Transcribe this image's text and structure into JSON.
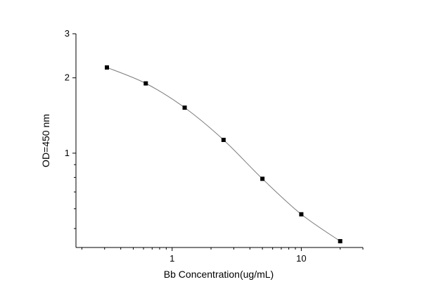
{
  "chart_data": {
    "type": "line",
    "x_scale": "log",
    "y_scale": "log",
    "xlabel": "Bb Concentration(ug/mL)",
    "ylabel": "OD=450 nm",
    "xlim": [
      0.18,
      30
    ],
    "ylim": [
      0.42,
      3
    ],
    "x_ticks": [
      {
        "value": 1,
        "label": "1"
      },
      {
        "value": 10,
        "label": "10"
      }
    ],
    "y_ticks": [
      {
        "value": 1,
        "label": "1"
      },
      {
        "value": 2,
        "label": "2"
      },
      {
        "value": 3,
        "label": "3"
      }
    ],
    "grid": false,
    "series": [
      {
        "marker": "square",
        "color": "#000000",
        "line_color": "#7a7a7a",
        "x": [
          0.3125,
          0.625,
          1.25,
          2.5,
          5,
          10,
          20
        ],
        "y": [
          2.2,
          1.9,
          1.52,
          1.13,
          0.79,
          0.57,
          0.445
        ]
      }
    ]
  }
}
